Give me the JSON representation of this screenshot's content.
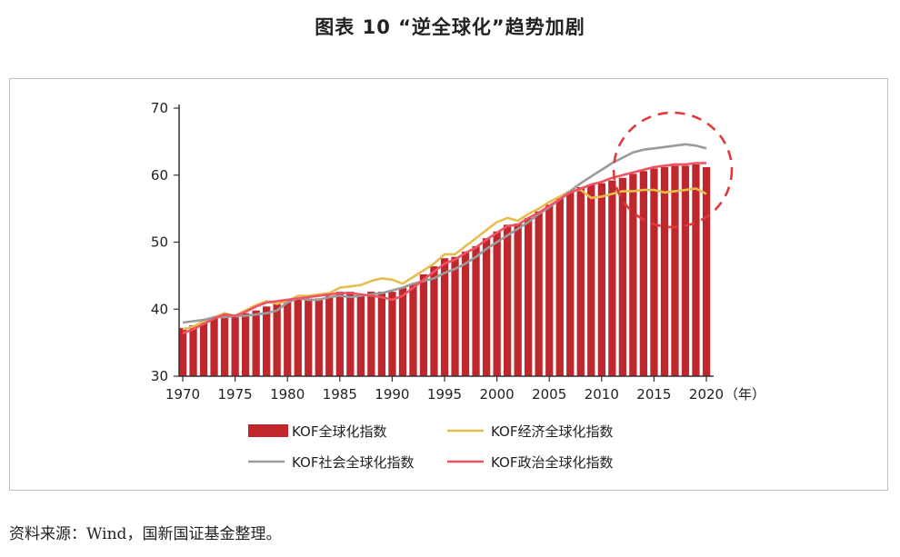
{
  "page": {
    "title": "图表 10 “逆全球化”趋势加剧",
    "source": "资料来源：Wind，国新国证基金整理。"
  },
  "colors": {
    "bar": "#c0272d",
    "economic": "#e6bd4f",
    "social": "#9a9a9a",
    "political": "#ef5363",
    "circle": "#e03a3a",
    "axis": "#333333"
  },
  "chart_data": {
    "type": "bar",
    "x_unit_label": "（年）",
    "ylim": [
      30,
      70
    ],
    "yticks": [
      30,
      40,
      50,
      60,
      70
    ],
    "xticks": [
      1970,
      1975,
      1980,
      1985,
      1990,
      1995,
      2000,
      2005,
      2010,
      2015,
      2020
    ],
    "grid": false,
    "legend_position": "bottom",
    "annotation": "red dashed circle around 2013-2020",
    "x": [
      1970,
      1971,
      1972,
      1973,
      1974,
      1975,
      1976,
      1977,
      1978,
      1979,
      1980,
      1981,
      1982,
      1983,
      1984,
      1985,
      1986,
      1987,
      1988,
      1989,
      1990,
      1991,
      1992,
      1993,
      1994,
      1995,
      1996,
      1997,
      1998,
      1999,
      2000,
      2001,
      2002,
      2003,
      2004,
      2005,
      2006,
      2007,
      2008,
      2009,
      2010,
      2011,
      2012,
      2013,
      2014,
      2015,
      2016,
      2017,
      2018,
      2019,
      2020
    ],
    "series": [
      {
        "name": "KOF全球化指数",
        "kind": "bar",
        "values": [
          37.2,
          37.6,
          38.0,
          38.6,
          39.0,
          38.8,
          39.4,
          39.8,
          40.4,
          40.8,
          41.2,
          41.6,
          41.6,
          41.6,
          42.0,
          42.6,
          42.6,
          42.2,
          42.6,
          42.6,
          42.6,
          43.2,
          43.8,
          45.2,
          46.4,
          47.6,
          47.8,
          48.6,
          49.4,
          50.6,
          51.6,
          52.6,
          52.8,
          53.6,
          54.6,
          55.6,
          56.6,
          57.6,
          58.2,
          58.6,
          58.8,
          59.2,
          59.6,
          60.2,
          60.6,
          61.0,
          61.2,
          61.4,
          61.4,
          61.6,
          61.2
        ]
      },
      {
        "name": "KOF经济全球化指数",
        "kind": "line",
        "values": [
          37.0,
          37.4,
          38.2,
          38.8,
          39.4,
          39.0,
          39.8,
          40.6,
          41.2,
          40.8,
          41.2,
          42.0,
          42.0,
          42.2,
          42.4,
          43.2,
          43.4,
          43.6,
          44.2,
          44.6,
          44.4,
          43.8,
          44.8,
          45.8,
          46.8,
          48.2,
          48.2,
          49.4,
          50.6,
          51.8,
          53.0,
          53.6,
          53.2,
          54.2,
          55.0,
          56.0,
          56.8,
          57.6,
          57.8,
          56.6,
          56.8,
          57.2,
          57.6,
          57.6,
          57.8,
          57.8,
          57.4,
          57.6,
          57.8,
          58.0,
          57.2
        ]
      },
      {
        "name": "KOF社会全球化指数",
        "kind": "line",
        "values": [
          38.0,
          38.2,
          38.4,
          38.8,
          38.8,
          39.0,
          39.0,
          39.2,
          39.4,
          39.8,
          41.0,
          41.6,
          41.4,
          41.4,
          41.8,
          42.0,
          41.8,
          42.0,
          42.2,
          42.4,
          42.8,
          43.2,
          43.8,
          44.2,
          44.6,
          45.4,
          46.0,
          46.8,
          47.8,
          49.0,
          50.0,
          51.0,
          52.0,
          53.0,
          54.2,
          55.2,
          56.4,
          57.6,
          58.8,
          59.8,
          60.8,
          61.8,
          62.6,
          63.4,
          63.8,
          64.0,
          64.2,
          64.4,
          64.6,
          64.4,
          64.0
        ]
      },
      {
        "name": "KOF政治全球化指数",
        "kind": "line",
        "values": [
          36.4,
          37.0,
          37.8,
          38.6,
          39.2,
          39.0,
          39.6,
          40.4,
          41.0,
          41.2,
          41.4,
          41.6,
          41.8,
          42.0,
          42.2,
          42.4,
          42.4,
          42.2,
          42.0,
          41.8,
          41.4,
          42.0,
          43.2,
          44.4,
          45.6,
          46.8,
          47.4,
          48.4,
          49.2,
          50.4,
          51.4,
          52.4,
          52.6,
          53.6,
          54.4,
          55.4,
          56.4,
          57.4,
          58.0,
          58.6,
          59.0,
          59.6,
          60.0,
          60.4,
          60.8,
          61.2,
          61.4,
          61.6,
          61.6,
          61.8,
          61.8
        ]
      }
    ]
  }
}
